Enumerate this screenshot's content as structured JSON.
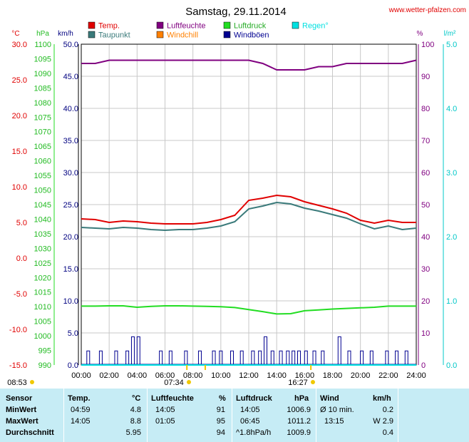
{
  "title": "Samstag, 29.11.2014",
  "source_url": "www.wetter-pfalzen.com",
  "legend": [
    {
      "label": "Temp.",
      "color": "#e00000"
    },
    {
      "label": "Luftfeuchte",
      "color": "#800080"
    },
    {
      "label": "Luftdruck",
      "color": "#22dd22"
    },
    {
      "label": "Regen°",
      "color": "#00e0e0"
    },
    {
      "label": "Taupunkt",
      "color": "#3a7a7a"
    },
    {
      "label": "Windchill",
      "color": "#ff8000"
    },
    {
      "label": "Windböen",
      "color": "#000090"
    }
  ],
  "axes": {
    "celsius": {
      "unit": "°C",
      "color": "#e00000",
      "ticks": [
        "30.0",
        "25.0",
        "20.0",
        "15.0",
        "10.0",
        "5.0",
        "0.0",
        "-5.0",
        "-10.0",
        "-15.0"
      ]
    },
    "hpa": {
      "unit": "hPa",
      "color": "#22bb22",
      "ticks": [
        "1100",
        "1095",
        "1090",
        "1085",
        "1080",
        "1075",
        "1070",
        "1065",
        "1060",
        "1055",
        "1050",
        "1045",
        "1040",
        "1035",
        "1030",
        "1025",
        "1020",
        "1015",
        "1010",
        "1005",
        "1000",
        "995",
        "990"
      ]
    },
    "kmh": {
      "unit": "km/h",
      "color": "#000080",
      "ticks": [
        "50.0",
        "45.0",
        "40.0",
        "35.0",
        "30.0",
        "25.0",
        "20.0",
        "15.0",
        "10.0",
        "5.0",
        "0.0"
      ]
    },
    "percent": {
      "unit": "%",
      "color": "#800080",
      "ticks": [
        "100",
        "90",
        "80",
        "70",
        "60",
        "50",
        "40",
        "30",
        "20",
        "10",
        "0"
      ]
    },
    "rain": {
      "unit": "l/m²",
      "color": "#00c8c8",
      "ticks": [
        "5.0",
        "4.0",
        "3.0",
        "2.0",
        "1.0",
        "0.0"
      ]
    },
    "time_ticks": [
      "00:00",
      "02:00",
      "04:00",
      "06:00",
      "08:00",
      "10:00",
      "12:00",
      "14:00",
      "16:00",
      "18:00",
      "20:00",
      "22:00",
      "24:00"
    ]
  },
  "sun_events": [
    {
      "label": "08:53",
      "time": "08:53"
    },
    {
      "label": "07:34",
      "time": "07:34"
    },
    {
      "label": "16:27",
      "time": "16:27"
    }
  ],
  "chart_data": {
    "type": "line",
    "title": "Samstag, 29.11.2014",
    "x_range": [
      "00:00",
      "24:00"
    ],
    "series": [
      {
        "name": "Temp.",
        "axis": "°C",
        "color": "#e00000",
        "x": [
          0,
          1,
          2,
          3,
          4,
          5,
          6,
          7,
          8,
          9,
          10,
          11,
          12,
          13,
          14,
          15,
          16,
          17,
          18,
          19,
          20,
          21,
          22,
          23,
          24
        ],
        "y": [
          5.5,
          5.4,
          5.0,
          5.2,
          5.1,
          4.9,
          4.8,
          4.8,
          4.8,
          5.0,
          5.4,
          6.0,
          8.1,
          8.4,
          8.8,
          8.6,
          7.9,
          7.4,
          6.9,
          6.3,
          5.3,
          4.9,
          5.3,
          5.0,
          5.0
        ]
      },
      {
        "name": "Taupunkt",
        "axis": "°C",
        "color": "#3a7a7a",
        "x": [
          0,
          1,
          2,
          3,
          4,
          5,
          6,
          7,
          8,
          9,
          10,
          11,
          12,
          13,
          14,
          15,
          16,
          17,
          18,
          19,
          20,
          21,
          22,
          23,
          24
        ],
        "y": [
          4.3,
          4.2,
          4.1,
          4.3,
          4.2,
          4.0,
          3.9,
          4.0,
          4.0,
          4.2,
          4.5,
          5.1,
          6.9,
          7.3,
          7.8,
          7.6,
          7.0,
          6.6,
          6.1,
          5.6,
          4.8,
          4.1,
          4.5,
          4.0,
          4.2
        ]
      },
      {
        "name": "Luftfeuchte",
        "axis": "%",
        "color": "#800080",
        "x": [
          0,
          1,
          2,
          3,
          4,
          5,
          6,
          7,
          8,
          9,
          10,
          11,
          12,
          13,
          14,
          15,
          16,
          17,
          18,
          19,
          20,
          21,
          22,
          23,
          24
        ],
        "y": [
          94,
          94,
          95,
          95,
          95,
          95,
          95,
          95,
          95,
          95,
          95,
          95,
          95,
          94,
          92,
          92,
          92,
          93,
          93,
          94,
          94,
          94,
          94,
          94,
          95
        ]
      },
      {
        "name": "Luftdruck",
        "axis": "hPa",
        "color": "#22dd22",
        "x": [
          0,
          1,
          2,
          3,
          4,
          5,
          6,
          7,
          8,
          9,
          10,
          11,
          12,
          13,
          14,
          15,
          16,
          17,
          18,
          19,
          20,
          21,
          22,
          23,
          24
        ],
        "y": [
          1010.2,
          1010.2,
          1010.3,
          1010.3,
          1009.8,
          1010.1,
          1010.3,
          1010.3,
          1010.2,
          1010.1,
          1010.0,
          1009.7,
          1009.0,
          1008.3,
          1007.5,
          1007.6,
          1008.6,
          1008.9,
          1009.2,
          1009.4,
          1009.6,
          1009.8,
          1010.2,
          1010.2,
          1010.2
        ]
      },
      {
        "name": "Windböen",
        "axis": "km/h",
        "color": "#000090",
        "x": [
          0.5,
          1.4,
          2.5,
          3.3,
          3.7,
          4.1,
          5.7,
          6.4,
          7.5,
          8.5,
          9.5,
          10.0,
          10.8,
          11.5,
          12.3,
          12.8,
          13.2,
          13.7,
          14.3,
          14.8,
          15.2,
          15.6,
          16.1,
          16.7,
          17.3,
          18.5,
          19.2,
          20.1,
          20.8,
          21.9,
          22.6,
          23.3
        ],
        "y": [
          2.2,
          2.2,
          2.2,
          2.2,
          4.4,
          4.4,
          2.2,
          2.2,
          2.2,
          2.2,
          2.2,
          2.2,
          2.2,
          2.2,
          2.2,
          2.2,
          4.4,
          2.2,
          2.2,
          2.2,
          2.2,
          2.2,
          2.2,
          2.2,
          2.2,
          4.4,
          2.2,
          2.2,
          2.2,
          2.2,
          2.2,
          2.2
        ]
      },
      {
        "name": "Regen°",
        "axis": "l/m²",
        "color": "#00e0e0",
        "x": [
          0,
          24
        ],
        "y": [
          0,
          0
        ]
      }
    ],
    "ylim_celsius": [
      -15,
      30
    ],
    "ylim_hpa": [
      990,
      1100
    ],
    "ylim_kmh": [
      0,
      50
    ],
    "ylim_percent": [
      0,
      100
    ],
    "ylim_rain": [
      0,
      5
    ],
    "grid": true
  },
  "stats": {
    "headers": {
      "sensor": "Sensor",
      "temp": "Temp.",
      "temp_unit": "°C",
      "hum": "Luftfeuchte",
      "hum_unit": "%",
      "press": "Luftdruck",
      "press_unit": "hPa",
      "wind": "Wind",
      "wind_unit": "km/h"
    },
    "rows": [
      {
        "label": "MinWert",
        "temp_time": "04:59",
        "temp_val": "4.8",
        "hum_time": "14:05",
        "hum_val": "91",
        "press_time": "14:05",
        "press_val": "1006.9",
        "wind_time": "Ø 10 min.",
        "wind_val": "0.2"
      },
      {
        "label": "MaxWert",
        "temp_time": "14:05",
        "temp_val": "8.8",
        "hum_time": "01:05",
        "hum_val": "95",
        "press_time": "06:45",
        "press_val": "1011.2",
        "wind_time": "13:15",
        "wind_val": "W 2.9"
      },
      {
        "label": "Durchschnitt",
        "temp_time": "",
        "temp_val": "5.95",
        "hum_time": "",
        "hum_val": "94",
        "press_time": "^1.8hPa/h",
        "press_val": "1009.9",
        "wind_time": "",
        "wind_val": "0.4"
      }
    ]
  }
}
